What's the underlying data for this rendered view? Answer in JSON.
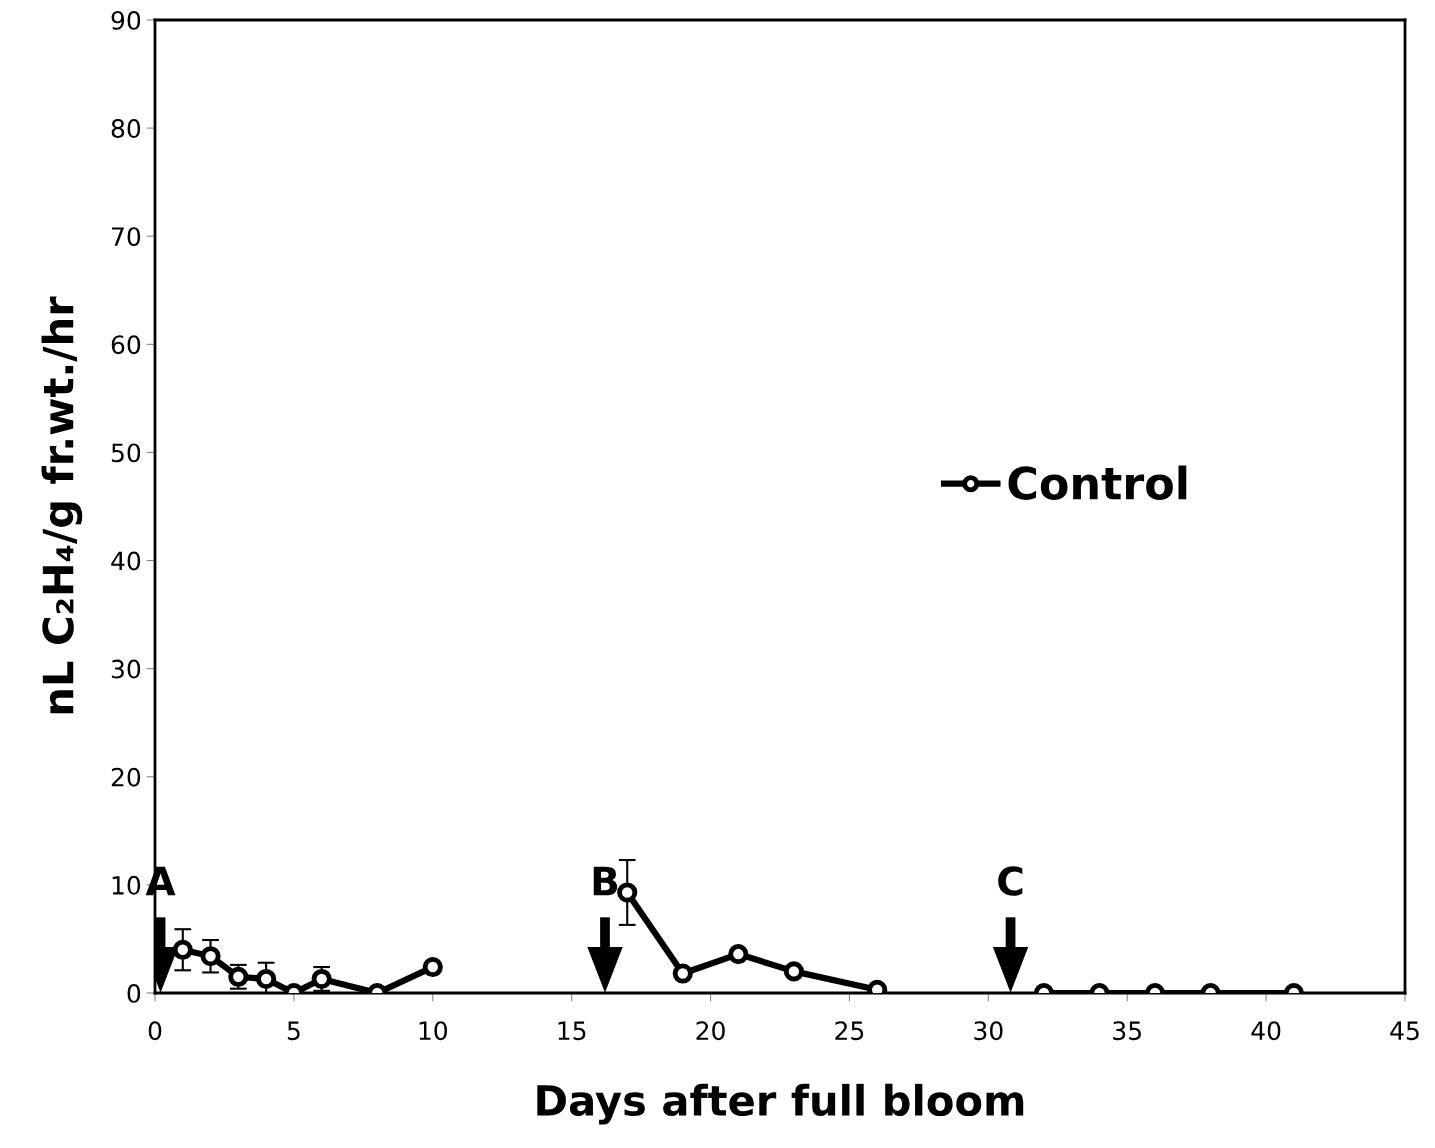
{
  "chart_data": {
    "type": "line",
    "xlabel": "Days after full bloom",
    "ylabel": "nL C₂H₄/g fr.wt./hr",
    "x": [
      1,
      2,
      3,
      4,
      5,
      6,
      8,
      10,
      13,
      17,
      19,
      21,
      23,
      26,
      29,
      32,
      34,
      36,
      38,
      41
    ],
    "series": [
      {
        "name": "Control",
        "color": "#000000",
        "values": [
          4.0,
          3.4,
          1.5,
          1.3,
          0,
          1.3,
          0,
          2.4,
          null,
          9.3,
          1.8,
          3.6,
          2.0,
          0.3,
          null,
          0,
          0,
          0,
          0,
          0
        ],
        "errors": [
          1.9,
          1.5,
          1.1,
          1.5,
          null,
          1.1,
          null,
          null,
          null,
          3.0,
          null,
          null,
          null,
          null,
          null,
          null,
          null,
          null,
          null,
          null
        ]
      }
    ],
    "ref_lines": [
      {
        "axis": "x",
        "value": 0.2,
        "label": "A"
      },
      {
        "axis": "x",
        "value": 16.2,
        "label": "B"
      },
      {
        "axis": "x",
        "value": 30.8,
        "label": "C"
      }
    ],
    "xlim": [
      0,
      45
    ],
    "xticks": [
      0,
      5,
      10,
      15,
      20,
      25,
      30,
      35,
      40,
      45
    ],
    "ylim": [
      0,
      90
    ],
    "yticks": [
      0,
      10,
      20,
      30,
      40,
      50,
      60,
      70,
      80,
      90
    ],
    "marker": "circle",
    "line_style": "solid",
    "legend": "right",
    "grid": false
  }
}
